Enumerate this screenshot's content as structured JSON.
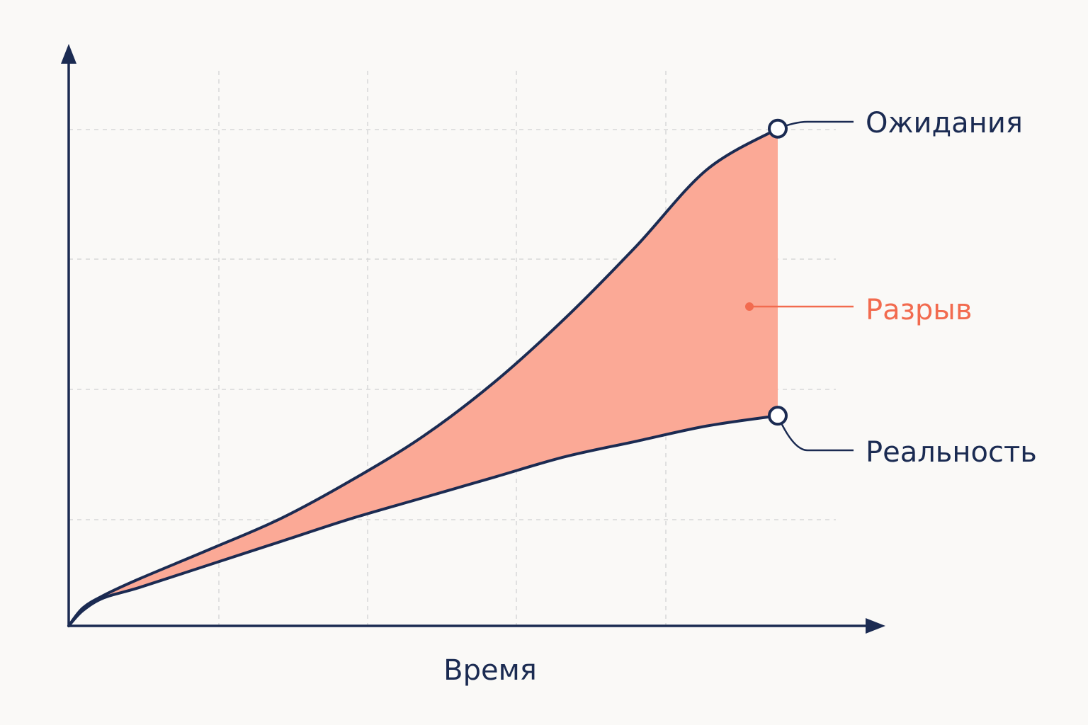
{
  "chart_data": {
    "type": "area",
    "title": "",
    "xlabel": "Время",
    "ylabel": "",
    "grid": true,
    "x_range": [
      0,
      1
    ],
    "y_range": [
      0,
      1
    ],
    "x": [
      0,
      0.02,
      0.05,
      0.1,
      0.2,
      0.3,
      0.4,
      0.5,
      0.6,
      0.7,
      0.8,
      0.9,
      1.0
    ],
    "series": [
      {
        "name": "Ожидания",
        "values": [
          0,
          0.035,
          0.06,
          0.092,
          0.15,
          0.21,
          0.285,
          0.37,
          0.475,
          0.6,
          0.74,
          0.89,
          0.97
        ]
      },
      {
        "name": "Реальность",
        "values": [
          0,
          0.03,
          0.055,
          0.075,
          0.12,
          0.165,
          0.21,
          0.25,
          0.29,
          0.33,
          0.36,
          0.39,
          0.41
        ]
      }
    ],
    "gap_label": "Разрыв"
  },
  "colors": {
    "line": "#1b2b52",
    "fill": "#fba996",
    "accent": "#f26b4f",
    "grid": "#d8d8d8",
    "background": "#faf9f7"
  }
}
